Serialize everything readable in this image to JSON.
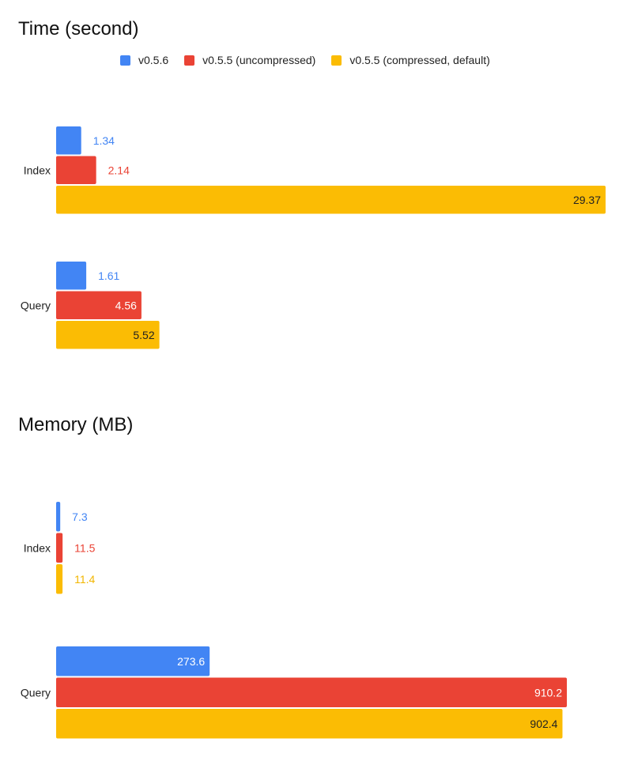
{
  "legend": {
    "items": [
      {
        "label": "v0.5.6",
        "color": "#4285F4"
      },
      {
        "label": "v0.5.5 (uncompressed)",
        "color": "#EA4335"
      },
      {
        "label": "v0.5.5 (compressed, default)",
        "color": "#FBBC04"
      }
    ]
  },
  "chart_data": [
    {
      "type": "bar",
      "orientation": "horizontal",
      "title": "Time (second)",
      "categories": [
        "Index",
        "Query"
      ],
      "series": [
        {
          "name": "v0.5.6",
          "color": "#4285F4",
          "values": [
            1.34,
            1.61
          ]
        },
        {
          "name": "v0.5.5 (uncompressed)",
          "color": "#EA4335",
          "values": [
            2.14,
            4.56
          ]
        },
        {
          "name": "v0.5.5 (compressed, default)",
          "color": "#FBBC04",
          "values": [
            29.37,
            5.52
          ]
        }
      ],
      "data_labels": [
        [
          "1.34",
          "1.61"
        ],
        [
          "2.14",
          "4.56"
        ],
        [
          "29.37",
          "5.52"
        ]
      ],
      "xlim": [
        0,
        29.37
      ],
      "grid": false,
      "legend": "top"
    },
    {
      "type": "bar",
      "orientation": "horizontal",
      "title": "Memory (MB)",
      "categories": [
        "Index",
        "Query"
      ],
      "series": [
        {
          "name": "v0.5.6",
          "color": "#4285F4",
          "values": [
            7.3,
            273.6
          ]
        },
        {
          "name": "v0.5.5 (uncompressed)",
          "color": "#EA4335",
          "values": [
            11.5,
            910.2
          ]
        },
        {
          "name": "v0.5.5 (compressed, default)",
          "color": "#FBBC04",
          "values": [
            11.4,
            902.4
          ]
        }
      ],
      "data_labels": [
        [
          "7.3",
          "273.6"
        ],
        [
          "11.5",
          "910.2"
        ],
        [
          "11.4",
          "902.4"
        ]
      ],
      "xlim": [
        0,
        910.2
      ],
      "grid": false,
      "legend": "none"
    }
  ]
}
